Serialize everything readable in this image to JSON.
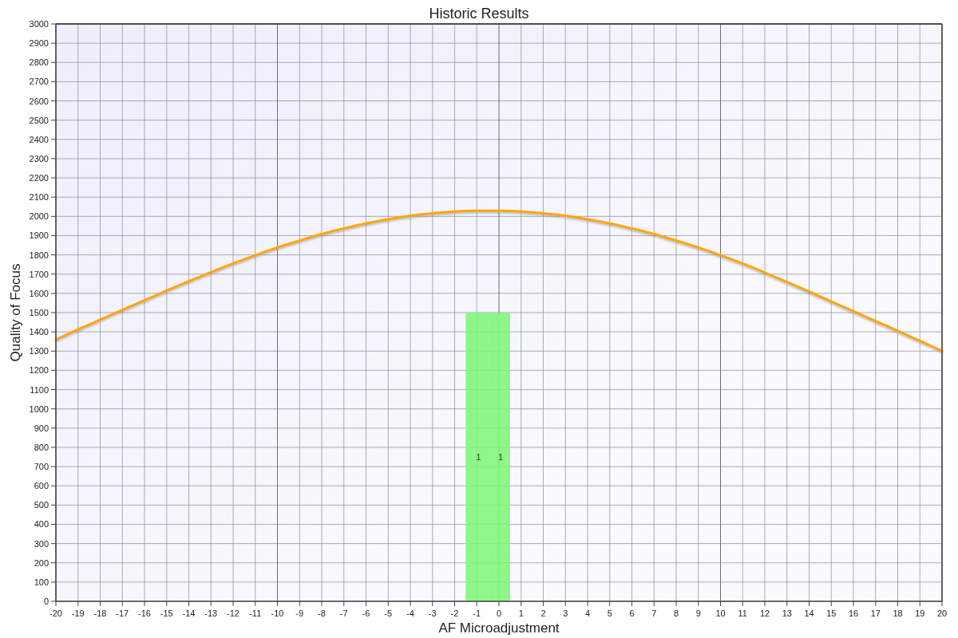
{
  "chart_data": {
    "type": "line",
    "title": "Historic Results",
    "xlabel": "AF Microadjustment",
    "ylabel": "Quality of Focus",
    "xlim": [
      -20,
      20
    ],
    "xticks": [
      -20,
      -19,
      -18,
      -17,
      -16,
      -15,
      -14,
      -13,
      -12,
      -11,
      -10,
      -9,
      -8,
      -7,
      -6,
      -5,
      -4,
      -3,
      -2,
      -1,
      0,
      1,
      2,
      3,
      4,
      5,
      6,
      7,
      8,
      9,
      10,
      11,
      12,
      13,
      14,
      15,
      16,
      17,
      18,
      19,
      20
    ],
    "ylim": [
      0,
      3000
    ],
    "yticks": [
      0,
      100,
      200,
      300,
      400,
      500,
      600,
      700,
      800,
      900,
      1000,
      1100,
      1200,
      1300,
      1400,
      1500,
      1600,
      1700,
      1800,
      1900,
      2000,
      2100,
      2200,
      2300,
      2400,
      2500,
      2600,
      2700,
      2800,
      2900,
      3000
    ],
    "y2lim": [
      0,
      2
    ],
    "grid": true,
    "series": [
      {
        "type": "bar",
        "axis": "y2",
        "x": [
          -1,
          0
        ],
        "values": [
          1,
          1
        ],
        "color": "#80f57a",
        "value_labels": [
          "1",
          "1"
        ]
      },
      {
        "x": [
          -20,
          -19,
          -18,
          -17,
          -16,
          -15,
          -14,
          -13,
          -12,
          -11,
          -10,
          -9,
          -8,
          -7,
          -6,
          -5,
          -4,
          -3,
          -2,
          -1,
          0,
          1,
          2,
          3,
          4,
          5,
          6,
          7,
          8,
          9,
          10,
          11,
          12,
          13,
          14,
          15,
          16,
          17,
          18,
          19,
          20
        ],
        "values": [
          1360,
          1412,
          1463,
          1514,
          1564,
          1614,
          1663,
          1710,
          1755,
          1798,
          1838,
          1874,
          1908,
          1937,
          1963,
          1985,
          2003,
          2016,
          2025,
          2029,
          2029,
          2025,
          2016,
          2003,
          1985,
          1963,
          1937,
          1908,
          1874,
          1838,
          1798,
          1755,
          1708,
          1659,
          1609,
          1558,
          1507,
          1456,
          1405,
          1353,
          1301
        ],
        "color": "#ffa500"
      }
    ]
  }
}
